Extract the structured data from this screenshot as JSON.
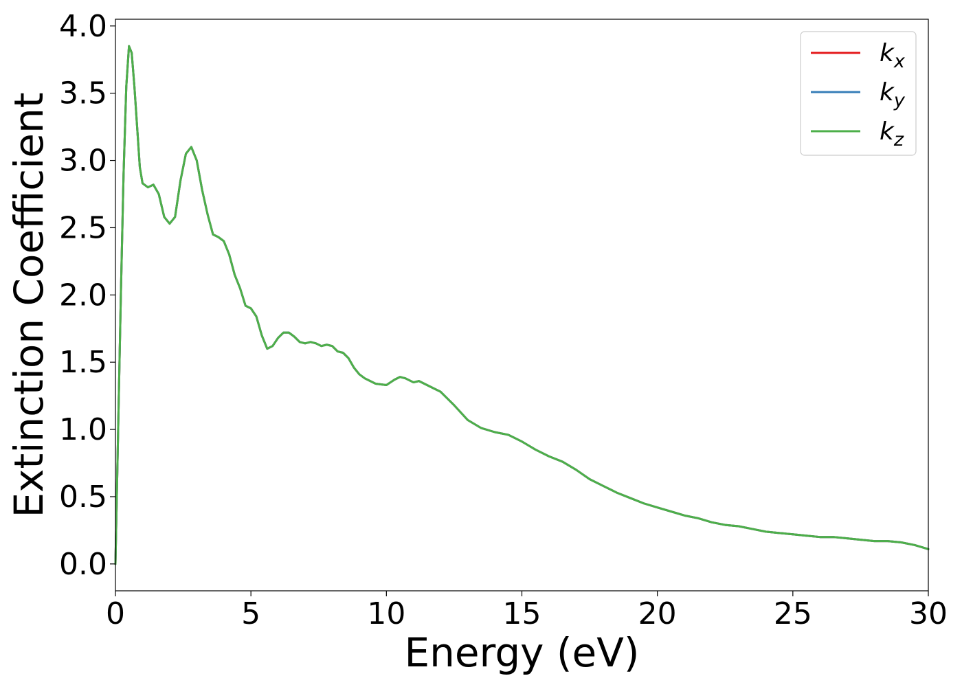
{
  "chart_data": {
    "type": "line",
    "xlabel": "Energy (eV)",
    "ylabel": "Extinction Coefficient",
    "xlim": [
      0,
      30
    ],
    "ylim": [
      -0.2,
      4.05
    ],
    "xticks": [
      0,
      5,
      10,
      15,
      20,
      25,
      30
    ],
    "xtick_labels": [
      "0",
      "5",
      "10",
      "15",
      "20",
      "25",
      "30"
    ],
    "yticks": [
      0.0,
      0.5,
      1.0,
      1.5,
      2.0,
      2.5,
      3.0,
      3.5,
      4.0
    ],
    "ytick_labels": [
      "0.0",
      "0.5",
      "1.0",
      "1.5",
      "2.0",
      "2.5",
      "3.0",
      "3.5",
      "4.0"
    ],
    "grid": false,
    "legend_position": "top-right",
    "series": [
      {
        "name": "k",
        "subscript": "x",
        "color": "#e41a1c",
        "x": [
          0,
          0.1,
          0.2,
          0.3,
          0.4,
          0.5,
          0.6,
          0.7,
          0.8,
          0.9,
          1.0,
          1.2,
          1.4,
          1.6,
          1.8,
          2.0,
          2.2,
          2.4,
          2.6,
          2.8,
          3.0,
          3.2,
          3.4,
          3.6,
          3.8,
          4.0,
          4.2,
          4.4,
          4.6,
          4.8,
          5.0,
          5.2,
          5.4,
          5.6,
          5.8,
          6.0,
          6.2,
          6.4,
          6.6,
          6.8,
          7.0,
          7.2,
          7.4,
          7.6,
          7.8,
          8.0,
          8.2,
          8.4,
          8.6,
          8.8,
          9.0,
          9.2,
          9.6,
          10.0,
          10.3,
          10.5,
          10.7,
          11.0,
          11.2,
          11.5,
          11.8,
          12.0,
          12.5,
          13.0,
          13.5,
          14.0,
          14.5,
          15.0,
          15.5,
          16.0,
          16.5,
          17.0,
          17.5,
          18.0,
          18.5,
          19.0,
          19.5,
          20.0,
          20.5,
          21.0,
          21.5,
          22.0,
          22.5,
          23.0,
          23.5,
          24.0,
          24.5,
          25.0,
          25.5,
          26.0,
          26.5,
          27.0,
          27.5,
          28.0,
          28.5,
          29.0,
          29.5,
          30.0
        ],
        "y": [
          0.0,
          1.0,
          2.0,
          2.9,
          3.55,
          3.85,
          3.8,
          3.55,
          3.25,
          2.95,
          2.83,
          2.8,
          2.82,
          2.75,
          2.58,
          2.53,
          2.58,
          2.85,
          3.05,
          3.1,
          3.0,
          2.78,
          2.6,
          2.45,
          2.43,
          2.4,
          2.3,
          2.15,
          2.05,
          1.92,
          1.9,
          1.84,
          1.7,
          1.6,
          1.62,
          1.68,
          1.72,
          1.72,
          1.69,
          1.65,
          1.64,
          1.65,
          1.64,
          1.62,
          1.63,
          1.62,
          1.58,
          1.57,
          1.53,
          1.46,
          1.41,
          1.38,
          1.34,
          1.33,
          1.37,
          1.39,
          1.38,
          1.35,
          1.36,
          1.33,
          1.3,
          1.28,
          1.18,
          1.07,
          1.01,
          0.98,
          0.96,
          0.91,
          0.85,
          0.8,
          0.76,
          0.7,
          0.63,
          0.58,
          0.53,
          0.49,
          0.45,
          0.42,
          0.39,
          0.36,
          0.34,
          0.31,
          0.29,
          0.28,
          0.26,
          0.24,
          0.23,
          0.22,
          0.21,
          0.2,
          0.2,
          0.19,
          0.18,
          0.17,
          0.17,
          0.16,
          0.14,
          0.11
        ]
      },
      {
        "name": "k",
        "subscript": "y",
        "color": "#377eb8",
        "x": [
          0,
          0.1,
          0.2,
          0.3,
          0.4,
          0.5,
          0.6,
          0.7,
          0.8,
          0.9,
          1.0,
          1.2,
          1.4,
          1.6,
          1.8,
          2.0,
          2.2,
          2.4,
          2.6,
          2.8,
          3.0,
          3.2,
          3.4,
          3.6,
          3.8,
          4.0,
          4.2,
          4.4,
          4.6,
          4.8,
          5.0,
          5.2,
          5.4,
          5.6,
          5.8,
          6.0,
          6.2,
          6.4,
          6.6,
          6.8,
          7.0,
          7.2,
          7.4,
          7.6,
          7.8,
          8.0,
          8.2,
          8.4,
          8.6,
          8.8,
          9.0,
          9.2,
          9.6,
          10.0,
          10.3,
          10.5,
          10.7,
          11.0,
          11.2,
          11.5,
          11.8,
          12.0,
          12.5,
          13.0,
          13.5,
          14.0,
          14.5,
          15.0,
          15.5,
          16.0,
          16.5,
          17.0,
          17.5,
          18.0,
          18.5,
          19.0,
          19.5,
          20.0,
          20.5,
          21.0,
          21.5,
          22.0,
          22.5,
          23.0,
          23.5,
          24.0,
          24.5,
          25.0,
          25.5,
          26.0,
          26.5,
          27.0,
          27.5,
          28.0,
          28.5,
          29.0,
          29.5,
          30.0
        ],
        "y": [
          0.0,
          1.0,
          2.0,
          2.9,
          3.55,
          3.85,
          3.8,
          3.55,
          3.25,
          2.95,
          2.83,
          2.8,
          2.82,
          2.75,
          2.58,
          2.53,
          2.58,
          2.85,
          3.05,
          3.1,
          3.0,
          2.78,
          2.6,
          2.45,
          2.43,
          2.4,
          2.3,
          2.15,
          2.05,
          1.92,
          1.9,
          1.84,
          1.7,
          1.6,
          1.62,
          1.68,
          1.72,
          1.72,
          1.69,
          1.65,
          1.64,
          1.65,
          1.64,
          1.62,
          1.63,
          1.62,
          1.58,
          1.57,
          1.53,
          1.46,
          1.41,
          1.38,
          1.34,
          1.33,
          1.37,
          1.39,
          1.38,
          1.35,
          1.36,
          1.33,
          1.3,
          1.28,
          1.18,
          1.07,
          1.01,
          0.98,
          0.96,
          0.91,
          0.85,
          0.8,
          0.76,
          0.7,
          0.63,
          0.58,
          0.53,
          0.49,
          0.45,
          0.42,
          0.39,
          0.36,
          0.34,
          0.31,
          0.29,
          0.28,
          0.26,
          0.24,
          0.23,
          0.22,
          0.21,
          0.2,
          0.2,
          0.19,
          0.18,
          0.17,
          0.17,
          0.16,
          0.14,
          0.11
        ]
      },
      {
        "name": "k",
        "subscript": "z",
        "color": "#4daf4a",
        "x": [
          0,
          0.1,
          0.2,
          0.3,
          0.4,
          0.5,
          0.6,
          0.7,
          0.8,
          0.9,
          1.0,
          1.2,
          1.4,
          1.6,
          1.8,
          2.0,
          2.2,
          2.4,
          2.6,
          2.8,
          3.0,
          3.2,
          3.4,
          3.6,
          3.8,
          4.0,
          4.2,
          4.4,
          4.6,
          4.8,
          5.0,
          5.2,
          5.4,
          5.6,
          5.8,
          6.0,
          6.2,
          6.4,
          6.6,
          6.8,
          7.0,
          7.2,
          7.4,
          7.6,
          7.8,
          8.0,
          8.2,
          8.4,
          8.6,
          8.8,
          9.0,
          9.2,
          9.6,
          10.0,
          10.3,
          10.5,
          10.7,
          11.0,
          11.2,
          11.5,
          11.8,
          12.0,
          12.5,
          13.0,
          13.5,
          14.0,
          14.5,
          15.0,
          15.5,
          16.0,
          16.5,
          17.0,
          17.5,
          18.0,
          18.5,
          19.0,
          19.5,
          20.0,
          20.5,
          21.0,
          21.5,
          22.0,
          22.5,
          23.0,
          23.5,
          24.0,
          24.5,
          25.0,
          25.5,
          26.0,
          26.5,
          27.0,
          27.5,
          28.0,
          28.5,
          29.0,
          29.5,
          30.0
        ],
        "y": [
          0.0,
          1.0,
          2.0,
          2.9,
          3.55,
          3.85,
          3.8,
          3.55,
          3.25,
          2.95,
          2.83,
          2.8,
          2.82,
          2.75,
          2.58,
          2.53,
          2.58,
          2.85,
          3.05,
          3.1,
          3.0,
          2.78,
          2.6,
          2.45,
          2.43,
          2.4,
          2.3,
          2.15,
          2.05,
          1.92,
          1.9,
          1.84,
          1.7,
          1.6,
          1.62,
          1.68,
          1.72,
          1.72,
          1.69,
          1.65,
          1.64,
          1.65,
          1.64,
          1.62,
          1.63,
          1.62,
          1.58,
          1.57,
          1.53,
          1.46,
          1.41,
          1.38,
          1.34,
          1.33,
          1.37,
          1.39,
          1.38,
          1.35,
          1.36,
          1.33,
          1.3,
          1.28,
          1.18,
          1.07,
          1.01,
          0.98,
          0.96,
          0.91,
          0.85,
          0.8,
          0.76,
          0.7,
          0.63,
          0.58,
          0.53,
          0.49,
          0.45,
          0.42,
          0.39,
          0.36,
          0.34,
          0.31,
          0.29,
          0.28,
          0.26,
          0.24,
          0.23,
          0.22,
          0.21,
          0.2,
          0.2,
          0.19,
          0.18,
          0.17,
          0.17,
          0.16,
          0.14,
          0.11
        ]
      }
    ]
  }
}
